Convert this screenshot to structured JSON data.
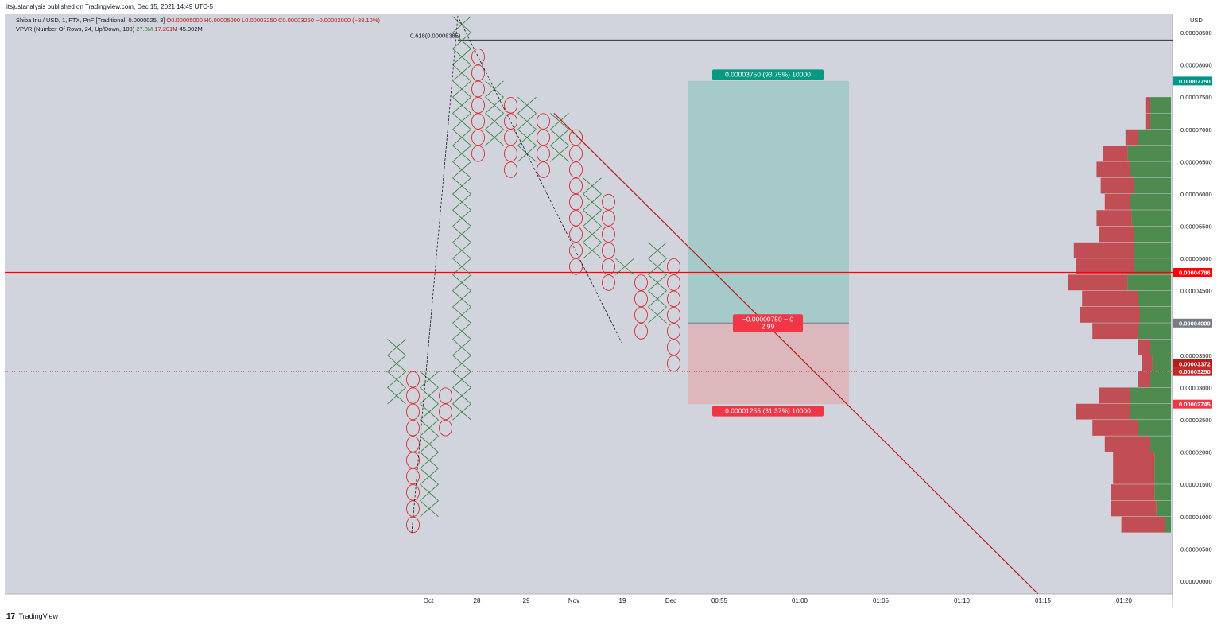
{
  "header": {
    "published": "itsjustanalysis published on TradingView.com, Dec 15, 2021 14:49 UTC-5"
  },
  "legend": {
    "symbol_prefix": "Shiba Inu / USD, 1, FTX, PnF [Traditional, 0.0000025, 3]",
    "ohlc": "O0.00005000  H0.00005000  L0.00003250  C0.00003250  −0.00002000 (−38.10%)",
    "vpvr_prefix": "VPVR (Number Of Rows, 24, Up/Down, 100)",
    "vpvr_up": "27.8M",
    "vpvr_down": "17.201M",
    "vpvr_total": "45.002M"
  },
  "footer": {
    "brand": "TradingView",
    "logo": "17"
  },
  "colors": {
    "background": "#d1d4dc",
    "x_box": "#2e7d32",
    "o_box": "#d32f2f",
    "trendline": "#b71c1c",
    "hline": "#ff0000",
    "profit_zone": "#a6c9c9",
    "loss_zone": "#dcb8bc",
    "vp_up": "#4f8a4f",
    "vp_down": "#c24e55"
  },
  "chart_data": {
    "type": "point_and_figure",
    "box_size": 2.5e-06,
    "reversal": 3,
    "y_axis": {
      "unit": "USD",
      "ylim": [
        0,
        8.875e-05
      ],
      "ticks": [
        "0.00008500",
        "0.00008000",
        "0.00007500",
        "0.00007000",
        "0.00006500",
        "0.00006000",
        "0.00005500",
        "0.00005000",
        "0.00004500",
        "0.00004000",
        "0.00003500",
        "0.00003000",
        "0.00002500",
        "0.00002000",
        "0.00001500",
        "0.00001000",
        "0.00000500",
        "0.00000000"
      ]
    },
    "x_axis": {
      "labels": [
        "Oct",
        "28",
        "29",
        "Nov",
        "19",
        "Dec",
        "00:55",
        "01:00",
        "01:05",
        "01:10",
        "01:15",
        "01:20"
      ]
    },
    "columns": [
      {
        "type": "X",
        "low": 2.75e-05,
        "high": 3.75e-05
      },
      {
        "type": "O",
        "low": 7.5e-06,
        "high": 3.25e-05
      },
      {
        "type": "X",
        "low": 1e-05,
        "high": 3.25e-05
      },
      {
        "type": "O",
        "low": 2.25e-05,
        "high": 3e-05
      },
      {
        "type": "X",
        "low": 2.5e-05,
        "high": 8.75e-05
      },
      {
        "type": "O",
        "low": 6.5e-05,
        "high": 8.25e-05
      },
      {
        "type": "X",
        "low": 6.75e-05,
        "high": 7.75e-05
      },
      {
        "type": "O",
        "low": 6.25e-05,
        "high": 7.5e-05
      },
      {
        "type": "X",
        "low": 6.5e-05,
        "high": 7.5e-05
      },
      {
        "type": "O",
        "low": 6.25e-05,
        "high": 7.25e-05
      },
      {
        "type": "X",
        "low": 6.5e-05,
        "high": 7.25e-05
      },
      {
        "type": "O",
        "low": 4.75e-05,
        "high": 7e-05
      },
      {
        "type": "X",
        "low": 5e-05,
        "high": 6.25e-05
      },
      {
        "type": "O",
        "low": 4.5e-05,
        "high": 6e-05
      },
      {
        "type": "X",
        "low": 4.75e-05,
        "high": 5e-05
      },
      {
        "type": "O",
        "low": 3.75e-05,
        "high": 4.75e-05
      },
      {
        "type": "X",
        "low": 4e-05,
        "high": 5.25e-05
      },
      {
        "type": "O",
        "low": 3.25e-05,
        "high": 5e-05
      }
    ],
    "fib_label": "0.618(0.00008385)",
    "fib_level": 8.385e-05,
    "horizontal_line": 4.786e-05,
    "close_line": 3.25e-05,
    "trendline": {
      "start_price": 7.25e-05,
      "end_price": 0
    },
    "position": {
      "entry": 4e-05,
      "target": 7.75e-05,
      "stop": 2.745e-05,
      "target_label": "0.00003750 (93.75%) 10000",
      "stop_label": "0.00001255 (31.37%) 10000",
      "center_label_1": "−0.00000750 ~ 0",
      "center_label_2": "2.99"
    },
    "price_tags": [
      {
        "value": 7.75e-05,
        "label": "0.00007750",
        "color": "#009688"
      },
      {
        "value": 4.786e-05,
        "label": "0.00004786",
        "color": "#ff0000"
      },
      {
        "value": 4e-05,
        "label": "0.00004000",
        "color": "#787b86"
      },
      {
        "value": 3.372e-05,
        "label": "0.00003372",
        "color": "#b71c1c"
      },
      {
        "value": 3.25e-05,
        "label": "0.00003250",
        "color": "#c62828"
      },
      {
        "value": 2.745e-05,
        "label": "0.00002745",
        "color": "#f23645"
      }
    ],
    "volume_profile": {
      "row_step": 2.5e-06,
      "rows": [
        {
          "low": 7.5e-06,
          "up": 0.3,
          "down": 2.1
        },
        {
          "low": 1e-05,
          "up": 0.7,
          "down": 2.2
        },
        {
          "low": 1.25e-05,
          "up": 0.8,
          "down": 2.1
        },
        {
          "low": 1.5e-05,
          "up": 0.8,
          "down": 2.0
        },
        {
          "low": 1.75e-05,
          "up": 0.8,
          "down": 2.0
        },
        {
          "low": 2e-05,
          "up": 1.0,
          "down": 2.2
        },
        {
          "low": 2.25e-05,
          "up": 1.6,
          "down": 2.2
        },
        {
          "low": 2.5e-05,
          "up": 2.0,
          "down": 2.6
        },
        {
          "low": 2.75e-05,
          "up": 2.0,
          "down": 1.5
        },
        {
          "low": 3e-05,
          "up": 1.0,
          "down": 0.6
        },
        {
          "low": 3.25e-05,
          "up": 0.9,
          "down": 0.5
        },
        {
          "low": 3.5e-05,
          "up": 1.0,
          "down": 0.6
        },
        {
          "low": 3.75e-05,
          "up": 1.6,
          "down": 2.2
        },
        {
          "low": 4e-05,
          "up": 1.5,
          "down": 2.9
        },
        {
          "low": 4.25e-05,
          "up": 1.6,
          "down": 2.7
        },
        {
          "low": 4.5e-05,
          "up": 2.1,
          "down": 2.9
        },
        {
          "low": 4.75e-05,
          "up": 1.8,
          "down": 2.8
        },
        {
          "low": 5e-05,
          "up": 1.8,
          "down": 2.9
        },
        {
          "low": 5.25e-05,
          "up": 1.8,
          "down": 1.7
        },
        {
          "low": 5.5e-05,
          "up": 1.9,
          "down": 1.7
        },
        {
          "low": 5.75e-05,
          "up": 2.0,
          "down": 1.2
        },
        {
          "low": 6e-05,
          "up": 1.8,
          "down": 1.6
        },
        {
          "low": 6.25e-05,
          "up": 2.0,
          "down": 1.6
        },
        {
          "low": 6.5e-05,
          "up": 2.1,
          "down": 1.2
        },
        {
          "low": 6.75e-05,
          "up": 1.6,
          "down": 0.6
        },
        {
          "low": 7e-05,
          "up": 1.0,
          "down": 0.2
        },
        {
          "low": 7.25e-05,
          "up": 1.0,
          "down": 0.2
        }
      ]
    }
  }
}
